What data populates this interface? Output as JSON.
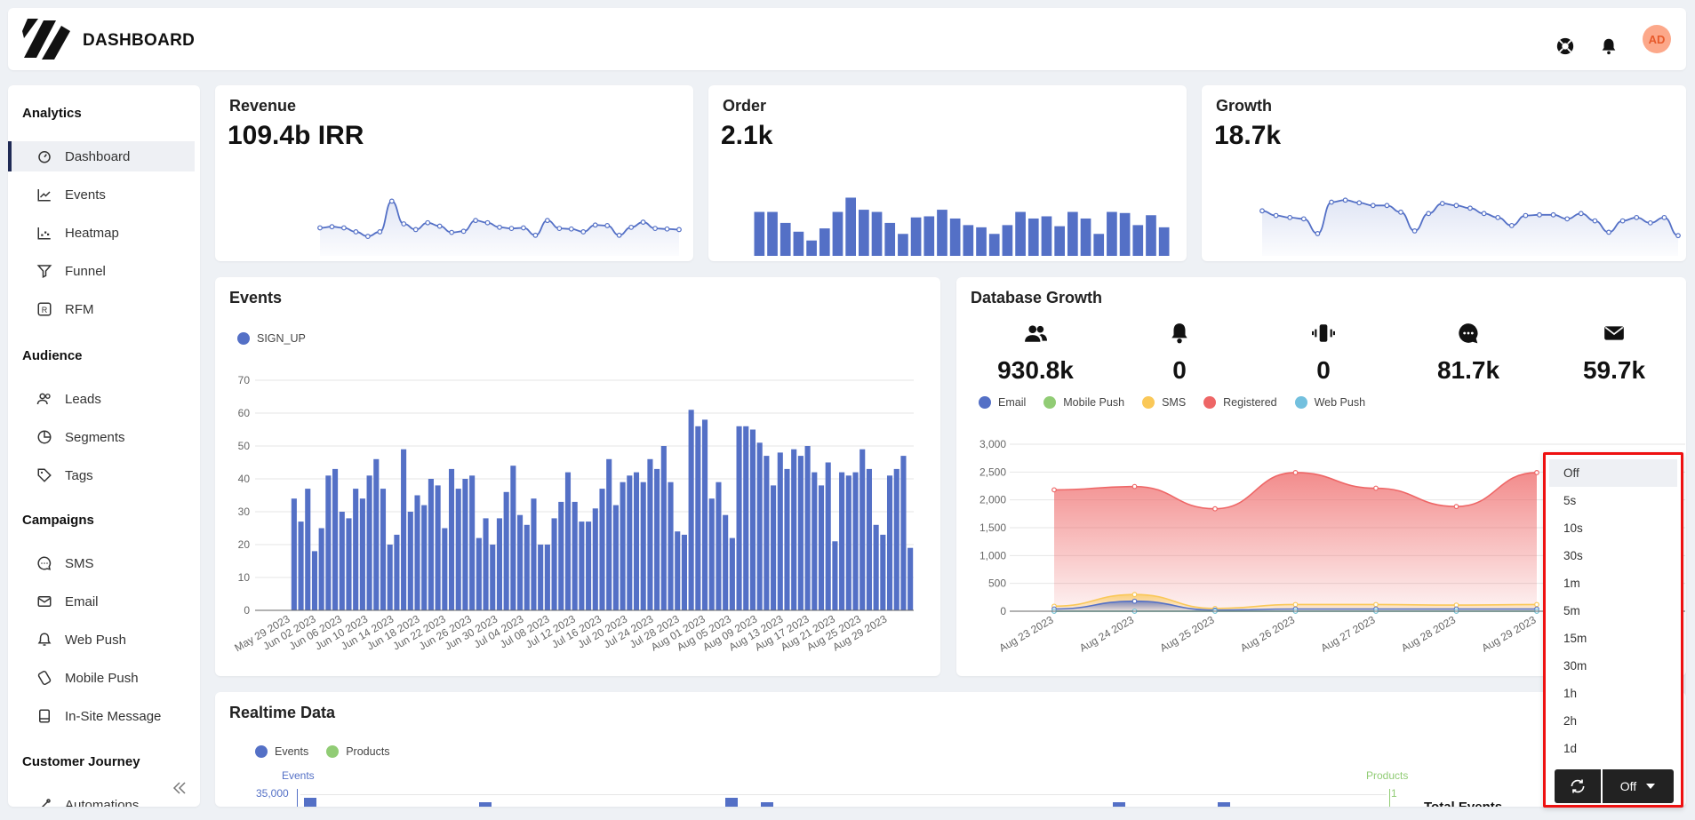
{
  "header": {
    "title": "DASHBOARD",
    "avatar_initials": "AD",
    "icons": [
      "help-icon",
      "bell-icon"
    ]
  },
  "sidebar": {
    "sections": [
      {
        "label": "Analytics",
        "items": [
          {
            "label": "Dashboard",
            "icon": "dashboard-icon",
            "active": true
          },
          {
            "label": "Events",
            "icon": "line-chart-icon"
          },
          {
            "label": "Heatmap",
            "icon": "heatmap-icon"
          },
          {
            "label": "Funnel",
            "icon": "funnel-icon"
          },
          {
            "label": "RFM",
            "icon": "rfm-icon"
          }
        ]
      },
      {
        "label": "Audience",
        "items": [
          {
            "label": "Leads",
            "icon": "users-icon"
          },
          {
            "label": "Segments",
            "icon": "pie-icon"
          },
          {
            "label": "Tags",
            "icon": "tag-icon"
          }
        ]
      },
      {
        "label": "Campaigns",
        "items": [
          {
            "label": "SMS",
            "icon": "chat-icon"
          },
          {
            "label": "Email",
            "icon": "mail-icon"
          },
          {
            "label": "Web Push",
            "icon": "bell-icon"
          },
          {
            "label": "Mobile Push",
            "icon": "mobile-push-icon"
          },
          {
            "label": "In-Site Message",
            "icon": "window-icon"
          }
        ]
      },
      {
        "label": "Customer Journey",
        "items": [
          {
            "label": "Automations",
            "icon": "automation-icon"
          }
        ]
      }
    ]
  },
  "kpis": [
    {
      "title": "Revenue",
      "value": "109.4b IRR",
      "type": "line"
    },
    {
      "title": "Order",
      "value": "2.1k",
      "type": "bar"
    },
    {
      "title": "Growth",
      "value": "18.7k",
      "type": "line"
    }
  ],
  "events_panel": {
    "title": "Events",
    "legend": "SIGN_UP"
  },
  "db_panel": {
    "title": "Database Growth",
    "stats": [
      {
        "icon": "users-icon",
        "value": "930.8k"
      },
      {
        "icon": "bell-icon",
        "value": "0"
      },
      {
        "icon": "mobile-vibrate-icon",
        "value": "0"
      },
      {
        "icon": "chat-icon",
        "value": "81.7k"
      },
      {
        "icon": "mail-icon",
        "value": "59.7k"
      }
    ],
    "legend": [
      {
        "label": "Email",
        "color": "#5470c6"
      },
      {
        "label": "Mobile Push",
        "color": "#91cc75"
      },
      {
        "label": "SMS",
        "color": "#fac858"
      },
      {
        "label": "Registered",
        "color": "#ee6666"
      },
      {
        "label": "Web Push",
        "color": "#73c0de"
      }
    ]
  },
  "realtime_panel": {
    "title": "Realtime Data",
    "legend": [
      {
        "label": "Events",
        "color": "#5470c6"
      },
      {
        "label": "Products",
        "color": "#91cc75"
      }
    ],
    "left_axis_label": "Events",
    "right_axis_label": "Products",
    "left_tick_top": "35,000",
    "right_tick_top": "1",
    "total_label": "Total Events"
  },
  "refresh_dropdown": {
    "options": [
      "Off",
      "5s",
      "10s",
      "30s",
      "1m",
      "5m",
      "15m",
      "30m",
      "1h",
      "2h",
      "1d"
    ],
    "selected": "Off",
    "button_label": "Off"
  },
  "chart_data": [
    {
      "type": "line",
      "title": "Revenue",
      "values": [
        43,
        45,
        43,
        36,
        28,
        36,
        90,
        50,
        40,
        52,
        46,
        35,
        37,
        56,
        52,
        44,
        42,
        43,
        30,
        56,
        42,
        41,
        36,
        48,
        47,
        30,
        44,
        53,
        42,
        41,
        40
      ]
    },
    {
      "type": "bar",
      "title": "Order",
      "values": [
        40,
        40,
        30,
        22,
        14,
        25,
        40,
        53,
        42,
        40,
        30,
        20,
        35,
        36,
        42,
        34,
        28,
        26,
        20,
        28,
        40,
        34,
        36,
        27,
        40,
        34,
        20,
        40,
        39,
        28,
        37,
        26
      ]
    },
    {
      "type": "line",
      "title": "Growth",
      "values": [
        62,
        55,
        52,
        50,
        28,
        75,
        78,
        74,
        70,
        70,
        60,
        32,
        58,
        73,
        70,
        66,
        58,
        52,
        40,
        55,
        56,
        56,
        50,
        58,
        47,
        30,
        47,
        52,
        44,
        52,
        25
      ]
    },
    {
      "type": "bar",
      "title": "Events",
      "series": [
        {
          "name": "SIGN_UP"
        }
      ],
      "ylim": [
        0,
        70
      ],
      "yticks": [
        0,
        10,
        20,
        30,
        40,
        50,
        60,
        70
      ],
      "xtick_labels": [
        "May 29 2023",
        "Jun 02 2023",
        "Jun 06 2023",
        "Jun 10 2023",
        "Jun 14 2023",
        "Jun 18 2023",
        "Jun 22 2023",
        "Jun 26 2023",
        "Jun 30 2023",
        "Jul 04 2023",
        "Jul 08 2023",
        "Jul 12 2023",
        "Jul 16 2023",
        "Jul 20 2023",
        "Jul 24 2023",
        "Jul 28 2023",
        "Aug 01 2023",
        "Aug 05 2023",
        "Aug 09 2023",
        "Aug 13 2023",
        "Aug 17 2023",
        "Aug 21 2023",
        "Aug 25 2023",
        "Aug 29 2023"
      ],
      "values": [
        34,
        27,
        37,
        18,
        25,
        41,
        43,
        30,
        28,
        37,
        34,
        41,
        46,
        37,
        20,
        23,
        49,
        30,
        35,
        32,
        40,
        38,
        25,
        43,
        37,
        40,
        41,
        22,
        28,
        20,
        28,
        36,
        44,
        29,
        26,
        34,
        20,
        20,
        28,
        33,
        42,
        33,
        27,
        27,
        31,
        37,
        46,
        32,
        39,
        41,
        42,
        39,
        46,
        43,
        50,
        39,
        24,
        23,
        61,
        56,
        58,
        34,
        39,
        29,
        22,
        56,
        56,
        55,
        51,
        47,
        38,
        48,
        43,
        49,
        47,
        50,
        42,
        38,
        45,
        21,
        42,
        41,
        42,
        49,
        43,
        26,
        23,
        41,
        43,
        47,
        19
      ]
    },
    {
      "type": "area",
      "title": "Database Growth",
      "x": [
        "Aug 23 2023",
        "Aug 24 2023",
        "Aug 25 2023",
        "Aug 26 2023",
        "Aug 27 2023",
        "Aug 28 2023",
        "Aug 29 2023"
      ],
      "ylim": [
        0,
        3000
      ],
      "yticks": [
        0,
        500,
        1000,
        1500,
        2000,
        2500,
        3000
      ],
      "series": [
        {
          "name": "Registered",
          "values": [
            2180,
            2240,
            1840,
            2490,
            2210,
            1880,
            2490
          ]
        },
        {
          "name": "SMS",
          "values": [
            90,
            300,
            50,
            120,
            120,
            110,
            120
          ]
        },
        {
          "name": "Email",
          "values": [
            40,
            180,
            20,
            40,
            40,
            40,
            40
          ]
        },
        {
          "name": "Mobile Push",
          "values": [
            0,
            0,
            0,
            0,
            0,
            0,
            0
          ]
        },
        {
          "name": "Web Push",
          "values": [
            0,
            0,
            0,
            0,
            0,
            0,
            0
          ]
        }
      ]
    }
  ]
}
